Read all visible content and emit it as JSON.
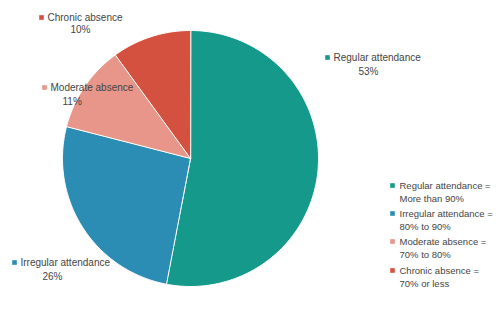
{
  "chart_data": {
    "type": "pie",
    "categories": [
      "Regular attendance",
      "Irregular attendance",
      "Moderate absence",
      "Chronic absence"
    ],
    "values": [
      53,
      26,
      11,
      10
    ],
    "value_labels": [
      "53%",
      "26%",
      "11%",
      "10%"
    ],
    "colors": [
      "#14998b",
      "#2b8db3",
      "#e8968a",
      "#d4513f"
    ],
    "data_labels": true,
    "legend": "right",
    "legend_labels": [
      [
        "Regular attendance =",
        "More than 90%"
      ],
      [
        "Irregular attendance =",
        "80% to 90%"
      ],
      [
        "Moderate absence =",
        "70% to 80%"
      ],
      [
        "Chronic absence =",
        "70% or less"
      ]
    ]
  }
}
